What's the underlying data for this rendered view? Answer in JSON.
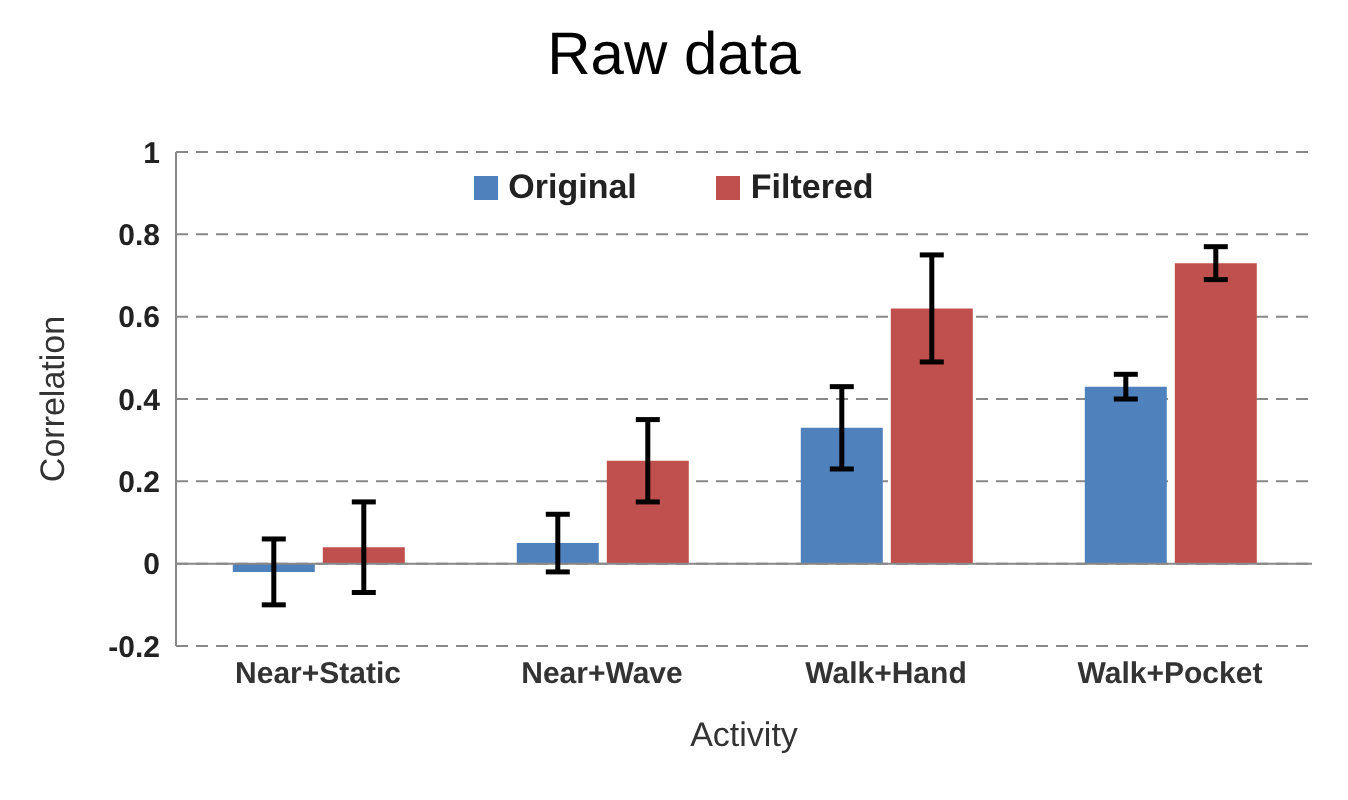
{
  "chart_data": {
    "type": "bar",
    "title": "Raw data",
    "xlabel": "Activity",
    "ylabel": "Correlation",
    "categories": [
      "Near+Static",
      "Near+Wave",
      "Walk+Hand",
      "Walk+Pocket"
    ],
    "series": [
      {
        "name": "Original",
        "color": "#4f81bd",
        "values": [
          -0.02,
          0.05,
          0.33,
          0.43
        ],
        "errors": [
          0.08,
          0.07,
          0.1,
          0.03
        ]
      },
      {
        "name": "Filtered",
        "color": "#c0504d",
        "values": [
          0.04,
          0.25,
          0.62,
          0.73
        ],
        "errors": [
          0.11,
          0.1,
          0.13,
          0.04
        ]
      }
    ],
    "ylim": [
      -0.2,
      1
    ],
    "yticks": [
      -0.2,
      0,
      0.2,
      0.4,
      0.6,
      0.8,
      1
    ],
    "grid": "y",
    "legend": "top"
  }
}
